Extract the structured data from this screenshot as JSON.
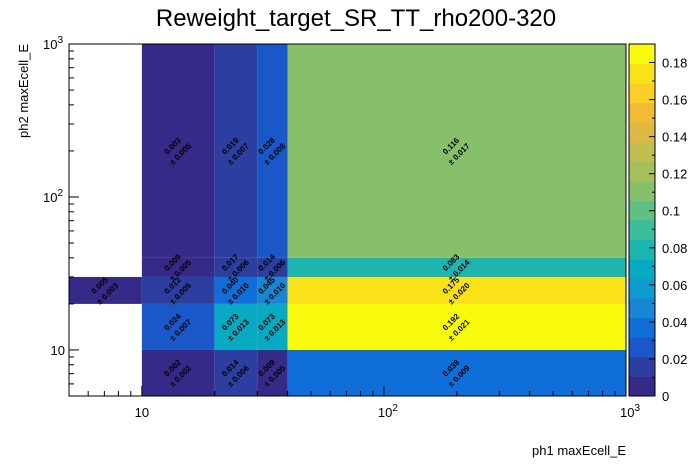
{
  "chart_data": {
    "type": "heatmap",
    "title": "Reweight_target_SR_TT_rho200-320",
    "xlabel": "ph1 maxEcell_E",
    "ylabel": "ph2 maxEcell_E",
    "xscale": "log",
    "yscale": "log",
    "xlim": [
      5,
      1000
    ],
    "ylim": [
      5,
      1000
    ],
    "zlim": [
      0,
      0.19
    ],
    "grid": false,
    "x_edges": [
      5,
      10,
      20,
      30,
      40,
      1000
    ],
    "y_edges": [
      5,
      10,
      20,
      30,
      40,
      1000
    ],
    "x_ticks": [
      {
        "value": 10,
        "label": "10"
      },
      {
        "value": 100,
        "label": "10"
      },
      {
        "value": 1000,
        "label": "10"
      }
    ],
    "x_tick_exponents": [
      "",
      "2",
      "3"
    ],
    "y_ticks": [
      {
        "value": 10,
        "label": "10"
      },
      {
        "value": 100,
        "label": "10"
      },
      {
        "value": 1000,
        "label": "10"
      }
    ],
    "y_tick_exponents": [
      "",
      "2",
      "3"
    ],
    "z_ticks": [
      "0",
      "0.02",
      "0.04",
      "0.06",
      "0.08",
      "0.1",
      "0.12",
      "0.14",
      "0.16",
      "0.18"
    ],
    "z_tick_values": [
      0,
      0.02,
      0.04,
      0.06,
      0.08,
      0.1,
      0.12,
      0.14,
      0.16,
      0.18
    ],
    "palette": [
      "#352a87",
      "#2c3ea0",
      "#1a57c8",
      "#0f6ed8",
      "#1786d4",
      "#0d9bd0",
      "#08a9c3",
      "#1cb5b0",
      "#3bbd9b",
      "#5fc084",
      "#86c06a",
      "#a7bf5b",
      "#c2bd4f",
      "#dcb945",
      "#f2bb35",
      "#fbcf27",
      "#f9e218",
      "#f9fb0e"
    ],
    "cells": [
      {
        "x": [
          10,
          20
        ],
        "y": [
          5,
          10
        ],
        "value": 0.002,
        "error": 0.002,
        "label": "0.002",
        "error_label": "± 0.002"
      },
      {
        "x": [
          20,
          30
        ],
        "y": [
          5,
          10
        ],
        "value": 0.014,
        "error": 0.006,
        "label": "0.014",
        "error_label": "± 0.006"
      },
      {
        "x": [
          30,
          40
        ],
        "y": [
          5,
          10
        ],
        "value": 0.009,
        "error": 0.005,
        "label": "0.009",
        "error_label": "± 0.005"
      },
      {
        "x": [
          40,
          1000
        ],
        "y": [
          5,
          10
        ],
        "value": 0.038,
        "error": 0.009,
        "label": "0.038",
        "error_label": "± 0.009"
      },
      {
        "x": [
          10,
          20
        ],
        "y": [
          10,
          20
        ],
        "value": 0.024,
        "error": 0.007,
        "label": "0.024",
        "error_label": "± 0.007"
      },
      {
        "x": [
          20,
          30
        ],
        "y": [
          10,
          20
        ],
        "value": 0.073,
        "error": 0.013,
        "label": "0.073",
        "error_label": "± 0.013"
      },
      {
        "x": [
          30,
          40
        ],
        "y": [
          10,
          20
        ],
        "value": 0.073,
        "error": 0.013,
        "label": "0.073",
        "error_label": "± 0.013"
      },
      {
        "x": [
          40,
          1000
        ],
        "y": [
          10,
          20
        ],
        "value": 0.192,
        "error": 0.021,
        "label": "0.192",
        "error_label": "± 0.021"
      },
      {
        "x": [
          5,
          10
        ],
        "y": [
          20,
          30
        ],
        "value": 0.005,
        "error": 0.003,
        "label": "0.005",
        "error_label": "± 0.003"
      },
      {
        "x": [
          10,
          20
        ],
        "y": [
          20,
          30
        ],
        "value": 0.012,
        "error": 0.005,
        "label": "0.012",
        "error_label": "± 0.005"
      },
      {
        "x": [
          20,
          30
        ],
        "y": [
          20,
          30
        ],
        "value": 0.04,
        "error": 0.01,
        "label": "0.040",
        "error_label": "± 0.010"
      },
      {
        "x": [
          30,
          40
        ],
        "y": [
          20,
          30
        ],
        "value": 0.045,
        "error": 0.01,
        "label": "0.045",
        "error_label": "± 0.010"
      },
      {
        "x": [
          40,
          1000
        ],
        "y": [
          20,
          30
        ],
        "value": 0.175,
        "error": 0.02,
        "label": "0.175",
        "error_label": "± 0.020"
      },
      {
        "x": [
          10,
          20
        ],
        "y": [
          30,
          40
        ],
        "value": 0.009,
        "error": 0.005,
        "label": "0.009",
        "error_label": "± 0.005"
      },
      {
        "x": [
          20,
          30
        ],
        "y": [
          30,
          40
        ],
        "value": 0.017,
        "error": 0.006,
        "label": "0.017",
        "error_label": "± 0.006"
      },
      {
        "x": [
          30,
          40
        ],
        "y": [
          30,
          40
        ],
        "value": 0.014,
        "error": 0.006,
        "label": "0.014",
        "error_label": "± 0.006"
      },
      {
        "x": [
          40,
          1000
        ],
        "y": [
          30,
          40
        ],
        "value": 0.083,
        "error": 0.014,
        "label": "0.083",
        "error_label": "± 0.014"
      },
      {
        "x": [
          10,
          20
        ],
        "y": [
          40,
          1000
        ],
        "value": 0.003,
        "error": 0.005,
        "label": "0.003",
        "error_label": "± 0.005"
      },
      {
        "x": [
          20,
          30
        ],
        "y": [
          40,
          1000
        ],
        "value": 0.019,
        "error": 0.007,
        "label": "0.019",
        "error_label": "± 0.007"
      },
      {
        "x": [
          30,
          40
        ],
        "y": [
          40,
          1000
        ],
        "value": 0.028,
        "error": 0.008,
        "label": "0.028",
        "error_label": "± 0.008"
      },
      {
        "x": [
          40,
          1000
        ],
        "y": [
          40,
          1000
        ],
        "value": 0.116,
        "error": 0.017,
        "label": "0.116",
        "error_label": "± 0.017"
      }
    ]
  }
}
